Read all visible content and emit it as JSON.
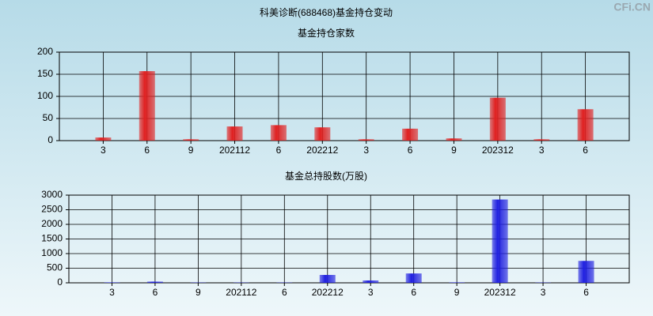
{
  "title": "科美诊断(688468)基金持仓变动",
  "watermark": "CFi.CN",
  "chart_data": [
    {
      "type": "bar",
      "title": "基金持仓家数",
      "categories": [
        "3",
        "6",
        "9",
        "202112",
        "6",
        "202212",
        "3",
        "6",
        "9",
        "202312",
        "3",
        "6"
      ],
      "values": [
        7,
        157,
        3,
        32,
        35,
        30,
        3,
        27,
        5,
        97,
        3,
        71
      ],
      "color": "#e02020",
      "ylim": [
        0,
        200
      ],
      "yticks": [
        0,
        50,
        100,
        150,
        200
      ],
      "grid": true
    },
    {
      "type": "bar",
      "title": "基金总持股数(万股)",
      "categories": [
        "3",
        "6",
        "9",
        "202112",
        "6",
        "202212",
        "3",
        "6",
        "9",
        "202312",
        "3",
        "6"
      ],
      "values": [
        15,
        40,
        10,
        10,
        10,
        270,
        80,
        320,
        15,
        2850,
        10,
        750
      ],
      "color": "#2020e0",
      "ylim": [
        0,
        3000
      ],
      "yticks": [
        0,
        500,
        1000,
        1500,
        2000,
        2500,
        3000
      ],
      "grid": true
    }
  ]
}
